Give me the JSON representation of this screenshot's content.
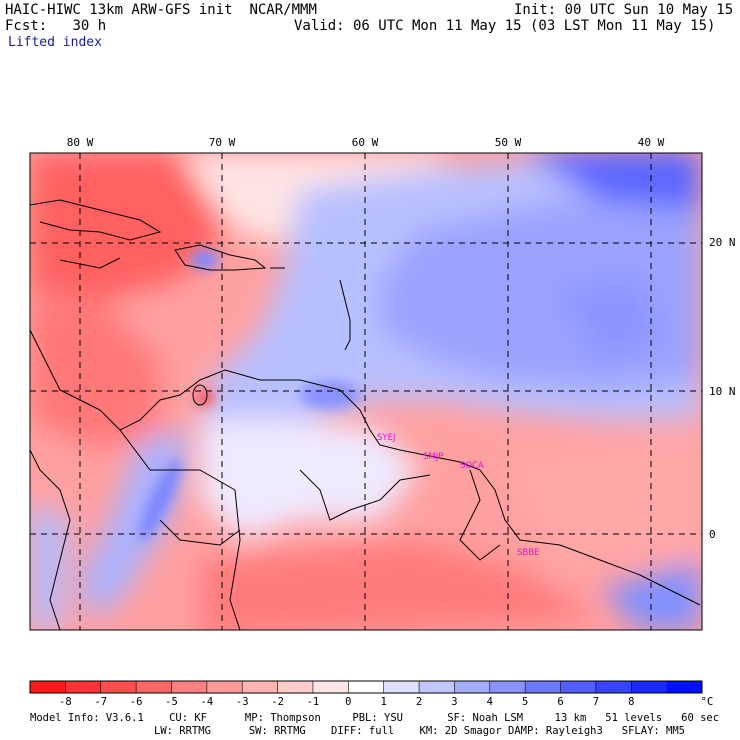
{
  "header": {
    "model": "HAIC-HIWC 13km ARW-GFS init",
    "org": "NCAR/MMM",
    "init": "Init: 00 UTC Sun 10 May 15",
    "fcst_label": "Fcst:",
    "fcst_value": "30 h",
    "valid": "Valid: 06 UTC Mon 11 May 15 (03 LST Mon 11 May 15)",
    "field": "Lifted index"
  },
  "map": {
    "lon_labels": [
      "80 W",
      "70 W",
      "60 W",
      "50 W",
      "40 W"
    ],
    "lat_labels": [
      "20 N",
      "10 N",
      "0"
    ],
    "stations": [
      "SYEJ",
      "SMJP",
      "SOCA",
      "SBBE"
    ],
    "station_color": "#e010e0"
  },
  "colorbar": {
    "labels": [
      "-8",
      "-7",
      "-6",
      "-5",
      "-4",
      "-3",
      "-2",
      "-1",
      "0",
      "1",
      "2",
      "3",
      "4",
      "5",
      "6",
      "7",
      "8"
    ],
    "unit": "°C",
    "colors": [
      "#ff1a1a",
      "#ff3333",
      "#ff4d4d",
      "#ff6666",
      "#ff8080",
      "#ff9999",
      "#ffb3b3",
      "#ffcccc",
      "#ffe6e6",
      "#ffffff",
      "#dde0ff",
      "#c2c6ff",
      "#a6acff",
      "#8a92ff",
      "#6e78ff",
      "#525eff",
      "#3644ff",
      "#1a2aff",
      "#0010ff"
    ]
  },
  "footer": {
    "line1": "Model Info: V3.6.1    CU: KF      MP: Thompson     PBL: YSU       SF: Noah LSM     13 km   51 levels   60 sec",
    "line2": "LW: RRTMG      SW: RRTMG    DIFF: full    KM: 2D Smagor DAMP: Rayleigh3   SFLAY: MM5"
  }
}
